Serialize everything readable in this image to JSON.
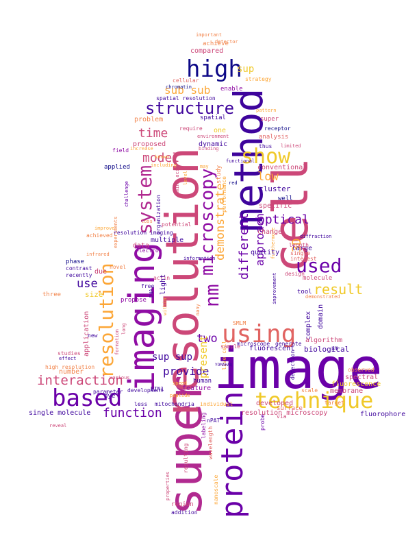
{
  "colors": {
    "dark_blue": "#0d0887",
    "indigo": "#3e049c",
    "purple": "#6a00a8",
    "violet": "#8f0da4",
    "magenta": "#b12a90",
    "pink": "#cc4778",
    "salmon": "#e16462",
    "orange": "#f2844b",
    "amber": "#fca636",
    "yellow": "#f0c929"
  },
  "words": {
    "image": "image",
    "super": "super",
    "resolution": "resolution",
    "cell": "cell",
    "method": "method",
    "imaging": "imaging",
    "protein": "protein",
    "high": "high",
    "technique": "technique",
    "based": "based",
    "using": "using",
    "show": "show",
    "system": "system",
    "microscopy": "microscopy",
    "structure": "structure",
    "resolution_v": "resolution",
    "nm": "nm",
    "used": "used",
    "interaction": "interaction",
    "function": "function",
    "model": "model",
    "time": "time",
    "sub_sub": "sub sub",
    "optical": "optical",
    "demonstrate": "demonstrate",
    "approach": "approach",
    "different": "different",
    "result": "result",
    "low": "low",
    "provide": "provide",
    "sup_sup": "sup sup",
    "two": "two",
    "present": "present",
    "use": "use",
    "3d": "3D",
    "compared": "compared",
    "achieve": "achieve",
    "enable": "enable",
    "spatial_resolution": "spatial resolution",
    "cellular": "cellular",
    "chromatin": "chromatin",
    "strategy": "strategy",
    "important": "important",
    "detector": "detector",
    "spatial": "spatial",
    "super_s": "super",
    "one": "one",
    "problem": "problem",
    "proposed": "proposed",
    "dynamic": "dynamic",
    "analysis": "analysis",
    "known": "known",
    "field": "field",
    "increase": "increase",
    "require": "require",
    "environment": "environment",
    "binding": "binding",
    "thus": "thus",
    "limited": "limited",
    "receptor": "receptor",
    "pattern": "pattern",
    "conventional": "conventional",
    "cluster": "cluster",
    "specific": "specific",
    "well": "well",
    "applied": "applied",
    "including": "including",
    "may": "may",
    "study": "study",
    "red": "red",
    "performance": "performance",
    "functional": "functional",
    "organization": "organization",
    "challenge": "challenge",
    "improve": "improve",
    "loss": "loss",
    "potential": "potential",
    "resolution_imaging": "resolution imaging",
    "multiple": "multiple",
    "data": "data",
    "electron": "electron",
    "change": "change",
    "quality": "quality",
    "large": "large",
    "length": "length",
    "single": "single",
    "interest": "interest",
    "diffraction": "diffraction",
    "molecule": "molecule",
    "phase": "phase",
    "contrast": "contrast",
    "recently": "recently",
    "due": "due",
    "novel": "novel",
    "size": "size",
    "three": "three",
    "actin": "actin",
    "free": "free",
    "propose": "propose",
    "light": "light",
    "dna": "DNA",
    "tool": "tool",
    "demonstrated": "demonstrated",
    "complex": "complex",
    "domain": "domain",
    "improvement": "improvement",
    "design": "design",
    "application": "application",
    "within": "within",
    "many": "many",
    "smlm": "SMLM",
    "microscope": "microscope",
    "generate": "generate",
    "algorithm": "algorithm",
    "biological": "biological",
    "fluorescent": "fluorescent",
    "sample": "sample",
    "live_cell": "live cell",
    "um": "µm",
    "yomahaq": "YOMAHAQ",
    "studies": "studies",
    "effect": "effect",
    "high_resolution": "high resolution",
    "number": "number",
    "parameter": "parameter",
    "dye": "dye",
    "development": "development",
    "bin1": "BIN1",
    "human": "human",
    "feature": "feature",
    "speed": "speed",
    "peptide": "peptide",
    "fluorescence": "fluorescence",
    "membrane": "membrane",
    "spectral": "spectral",
    "observed": "observed",
    "scale": "scale",
    "developed": "developed",
    "surface": "surface",
    "detection": "detection",
    "single_molecule": "single molecule",
    "resolution_microscopy": "resolution microscopy",
    "fluorophore": "fluorophore",
    "less": "less",
    "mitochondria": "mitochondria",
    "individual": "individual",
    "labeling": "labeling",
    "npat": "nPAT",
    "wavelength": "wavelength",
    "nanoscale": "nanoscale",
    "region": "region",
    "addition": "addition",
    "properties": "properties",
    "resulting": "resulting",
    "reveal": "reveal",
    "target": "target",
    "probe": "probe",
    "via": "via",
    "formation": "formation",
    "long": "long",
    "various": "various",
    "experiments": "experiments",
    "amino_acid": "amino acid",
    "level": "level",
    "achieved": "achieved",
    "infrared": "infrared",
    "information": "information",
    "furthermore": "furthermore",
    "new": "new",
    "sup": "sup"
  }
}
